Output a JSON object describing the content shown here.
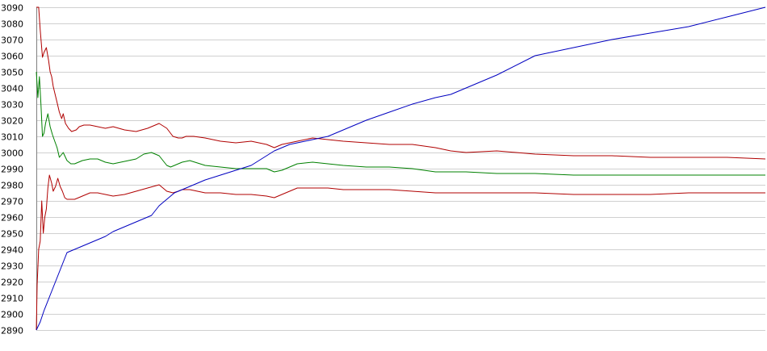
{
  "chart_data": {
    "type": "line",
    "title": "",
    "xlabel": "",
    "ylabel": "",
    "ylim": [
      2890,
      3090
    ],
    "xlim": [
      0,
      950
    ],
    "y_ticks": [
      2890,
      2900,
      2910,
      2920,
      2930,
      2940,
      2950,
      2960,
      2970,
      2980,
      2990,
      3000,
      3010,
      3020,
      3030,
      3040,
      3050,
      3060,
      3070,
      3080,
      3090
    ],
    "grid": true,
    "legend": "none",
    "series": [
      {
        "key": "upper",
        "color": "#b00000",
        "x": [
          0,
          3,
          5,
          8,
          10,
          13,
          16,
          18,
          20,
          22,
          24,
          27,
          30,
          33,
          35,
          38,
          42,
          46,
          52,
          56,
          62,
          70,
          80,
          90,
          100,
          115,
          130,
          145,
          160,
          170,
          178,
          185,
          190,
          195,
          205,
          220,
          240,
          260,
          280,
          300,
          310,
          320,
          340,
          360,
          380,
          400,
          430,
          460,
          490,
          520,
          540,
          560,
          600,
          650,
          700,
          750,
          800,
          850,
          900,
          950
        ],
        "y": [
          3090,
          3090,
          3076,
          3059,
          3062,
          3065,
          3057,
          3050,
          3047,
          3041,
          3037,
          3031,
          3025,
          3021,
          3024,
          3018,
          3015,
          3013,
          3014,
          3016,
          3017,
          3017,
          3016,
          3015,
          3016,
          3014,
          3013,
          3015,
          3018,
          3015,
          3010,
          3009,
          3009,
          3010,
          3010,
          3009,
          3007,
          3006,
          3007,
          3005,
          3003,
          3005,
          3007,
          3009,
          3008,
          3007,
          3006,
          3005,
          3005,
          3003,
          3001,
          3000,
          3001,
          2999,
          2998,
          2998,
          2997,
          2997,
          2997,
          2996
        ]
      },
      {
        "key": "middle",
        "color": "#008000",
        "x": [
          0,
          2,
          4,
          6,
          8,
          10,
          12,
          15,
          18,
          21,
          24,
          27,
          30,
          35,
          40,
          45,
          50,
          55,
          60,
          70,
          80,
          90,
          100,
          110,
          120,
          130,
          140,
          150,
          160,
          170,
          175,
          180,
          185,
          190,
          200,
          220,
          240,
          260,
          280,
          300,
          310,
          320,
          330,
          340,
          360,
          380,
          400,
          430,
          460,
          490,
          520,
          540,
          560,
          600,
          650,
          700,
          750,
          800,
          850,
          900,
          950
        ],
        "y": [
          3050,
          3034,
          3047,
          3030,
          3010,
          3012,
          3018,
          3024,
          3016,
          3011,
          3007,
          3003,
          2997,
          3000,
          2995,
          2993,
          2993,
          2994,
          2995,
          2996,
          2996,
          2994,
          2993,
          2994,
          2995,
          2996,
          2999,
          3000,
          2998,
          2992,
          2991,
          2992,
          2993,
          2994,
          2995,
          2992,
          2991,
          2990,
          2990,
          2990,
          2988,
          2989,
          2991,
          2993,
          2994,
          2993,
          2992,
          2991,
          2991,
          2990,
          2988,
          2988,
          2988,
          2987,
          2987,
          2986,
          2986,
          2986,
          2986,
          2986,
          2986
        ]
      },
      {
        "key": "lower",
        "color": "#b00000",
        "x": [
          0,
          1,
          3,
          5,
          7,
          9,
          11,
          13,
          15,
          17,
          20,
          22,
          25,
          28,
          31,
          34,
          37,
          40,
          45,
          50,
          55,
          60,
          65,
          70,
          80,
          90,
          100,
          115,
          130,
          145,
          160,
          170,
          178,
          185,
          190,
          200,
          210,
          220,
          240,
          260,
          280,
          300,
          310,
          320,
          330,
          340,
          360,
          380,
          400,
          430,
          460,
          490,
          520,
          540,
          560,
          600,
          650,
          700,
          750,
          800,
          850,
          900,
          950
        ],
        "y": [
          2890,
          2918,
          2940,
          2945,
          2970,
          2950,
          2960,
          2965,
          2978,
          2986,
          2981,
          2976,
          2979,
          2984,
          2979,
          2976,
          2972,
          2971,
          2971,
          2971,
          2972,
          2973,
          2974,
          2975,
          2975,
          2974,
          2973,
          2974,
          2976,
          2978,
          2980,
          2976,
          2975,
          2976,
          2977,
          2977,
          2976,
          2975,
          2975,
          2974,
          2974,
          2973,
          2972,
          2974,
          2976,
          2978,
          2978,
          2978,
          2977,
          2977,
          2977,
          2976,
          2975,
          2975,
          2975,
          2975,
          2975,
          2974,
          2974,
          2974,
          2975,
          2975,
          2975
        ]
      },
      {
        "key": "rising",
        "color": "#0000c0",
        "x": [
          0,
          5,
          10,
          20,
          30,
          40,
          50,
          55,
          60,
          70,
          80,
          90,
          100,
          110,
          120,
          130,
          140,
          150,
          160,
          165,
          170,
          175,
          180,
          185,
          195,
          205,
          220,
          240,
          260,
          280,
          300,
          310,
          320,
          330,
          340,
          360,
          380,
          400,
          430,
          460,
          490,
          520,
          540,
          560,
          600,
          650,
          700,
          750,
          800,
          850,
          900,
          950
        ],
        "y": [
          2890,
          2895,
          2902,
          2914,
          2926,
          2938,
          2940,
          2941,
          2942,
          2944,
          2946,
          2948,
          2951,
          2953,
          2955,
          2957,
          2959,
          2961,
          2967,
          2969,
          2971,
          2973,
          2975,
          2976,
          2978,
          2980,
          2983,
          2986,
          2989,
          2992,
          2998,
          3001,
          3003,
          3005,
          3006,
          3008,
          3010,
          3014,
          3020,
          3025,
          3030,
          3034,
          3036,
          3040,
          3048,
          3060,
          3065,
          3070,
          3074,
          3078,
          3084,
          3090
        ]
      }
    ]
  }
}
